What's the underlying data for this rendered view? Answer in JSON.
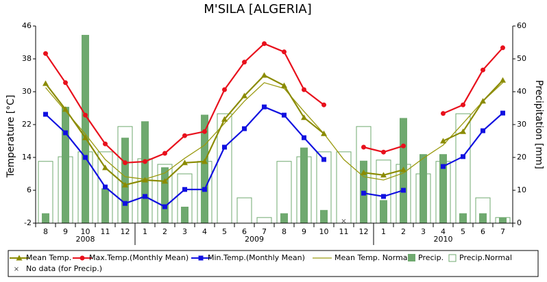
{
  "chart_data": {
    "type": "combo",
    "title": "M'SILA [ALGERIA]",
    "y_label": "Temperature [°C]",
    "y2_label": "Precipitation [mm]",
    "categories": [
      "8",
      "9",
      "10",
      "11",
      "12",
      "1",
      "2",
      "3",
      "4",
      "5",
      "6",
      "7",
      "8",
      "9",
      "10",
      "11",
      "12",
      "1",
      "2",
      "3",
      "4",
      "5",
      "6",
      "7"
    ],
    "x_groups": [
      {
        "label": "2008",
        "count": 5
      },
      {
        "label": "2009",
        "count": 12
      },
      {
        "label": "2010",
        "count": 7
      }
    ],
    "ylim": [
      -2,
      46
    ],
    "yticks": [
      -2,
      6,
      14,
      22,
      30,
      38,
      46
    ],
    "y2lim": [
      0,
      60
    ],
    "y2ticks": [
      0,
      10,
      20,
      30,
      40,
      50,
      60
    ],
    "no_data_label": "No data (for Precip.)",
    "series": [
      {
        "name": "Mean Temp.",
        "kind": "line",
        "marker": "triangle",
        "color": "#8b8b00",
        "axis": "y",
        "values": [
          32,
          25.7,
          18.8,
          11.5,
          7.3,
          8.5,
          8.2,
          12.7,
          13,
          23.3,
          29,
          34,
          31.5,
          23.7,
          19.8,
          null,
          10.3,
          9.7,
          11,
          null,
          18,
          20.3,
          27.7,
          32.8
        ]
      },
      {
        "name": "Max.Temp.(Monthly Mean)",
        "kind": "line",
        "marker": "circle",
        "color": "#e8101c",
        "axis": "y",
        "values": [
          39.3,
          32.2,
          24.3,
          17.3,
          12.7,
          13,
          15,
          19.3,
          20.3,
          30.5,
          37.2,
          41.7,
          39.7,
          30.5,
          26.8,
          null,
          16.5,
          15.3,
          16.8,
          null,
          24.7,
          26.8,
          35.3,
          40.7
        ]
      },
      {
        "name": "Min.Temp.(Monthly Mean)",
        "kind": "line",
        "marker": "square",
        "color": "#1010e0",
        "axis": "y",
        "values": [
          24.5,
          20,
          14,
          6.8,
          2.8,
          4.5,
          2,
          6.2,
          6.2,
          16.5,
          21,
          26.3,
          24.3,
          18.8,
          13.5,
          null,
          5.3,
          4.5,
          6,
          null,
          11.8,
          14.2,
          20.5,
          24.8
        ]
      },
      {
        "name": "Mean Temp. Normal",
        "kind": "line",
        "marker": null,
        "color": "#9a9a10",
        "axis": "y",
        "values": [
          31,
          25.3,
          19.7,
          13.5,
          9.3,
          8.7,
          10.2,
          13.8,
          17,
          22.3,
          27.7,
          32.2,
          30.8,
          25.2,
          19.8,
          13.5,
          9.3,
          8.5,
          10.2,
          13.8,
          17,
          22.3,
          27.7,
          32.2
        ]
      },
      {
        "name": "Precip.",
        "kind": "bar",
        "color": "#6fa96f",
        "axis": "y2",
        "values": [
          3,
          35.4,
          57.3,
          10.6,
          26,
          31,
          17,
          5,
          33,
          0,
          0,
          0,
          3,
          23,
          4,
          null,
          19,
          7,
          32,
          21,
          21,
          3,
          3,
          1.7
        ]
      },
      {
        "name": "Precip.Normal",
        "kind": "outline-bar",
        "color": "#6fa96f",
        "axis": "y2",
        "values": [
          18.8,
          20.2,
          21.7,
          21.7,
          29.4,
          19.6,
          17.9,
          15,
          18.8,
          33.3,
          7.7,
          1.7,
          18.8,
          20.2,
          21.7,
          21.7,
          29.4,
          19.2,
          17.9,
          15,
          18.8,
          33.3,
          7.7,
          1.7
        ]
      }
    ]
  }
}
